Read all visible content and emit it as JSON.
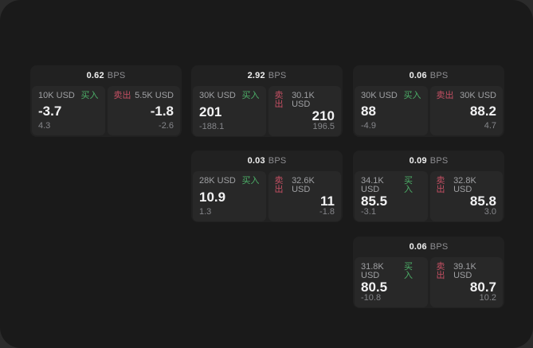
{
  "labels": {
    "buy": "买入",
    "sell": "卖出",
    "bps_unit": "BPS"
  },
  "colors": {
    "window_bg": "#1a1a1a",
    "outer_bg": "#2b2b2b",
    "card_bg": "#212121",
    "panel_bg": "#282828",
    "buy_green": "#4caf68",
    "sell_red": "#c44f63",
    "primary_text": "#f2f2f3",
    "muted_text": "#9fa0a3",
    "dim_text": "#85868a"
  },
  "cards": [
    {
      "bps": "0.62",
      "buy": {
        "amount": "10K USD",
        "price": "-3.7",
        "change": "4.3"
      },
      "sell": {
        "amount": "5.5K USD",
        "price": "-1.8",
        "change": "-2.6"
      }
    },
    {
      "bps": "2.92",
      "buy": {
        "amount": "30K USD",
        "price": "201",
        "change": "-188.1"
      },
      "sell": {
        "amount": "30.1K USD",
        "price": "210",
        "change": "196.5"
      }
    },
    {
      "bps": "0.06",
      "buy": {
        "amount": "30K USD",
        "price": "88",
        "change": "-4.9"
      },
      "sell": {
        "amount": "30K USD",
        "price": "88.2",
        "change": "4.7"
      }
    },
    {
      "bps": "0.03",
      "buy": {
        "amount": "28K USD",
        "price": "10.9",
        "change": "1.3"
      },
      "sell": {
        "amount": "32.6K USD",
        "price": "11",
        "change": "-1.8"
      }
    },
    {
      "bps": "0.09",
      "buy": {
        "amount": "34.1K USD",
        "price": "85.5",
        "change": "-3.1"
      },
      "sell": {
        "amount": "32.8K USD",
        "price": "85.8",
        "change": "3.0"
      }
    },
    {
      "bps": "0.06",
      "buy": {
        "amount": "31.8K USD",
        "price": "80.5",
        "change": "-10.8"
      },
      "sell": {
        "amount": "39.1K USD",
        "price": "80.7",
        "change": "10.2"
      }
    }
  ]
}
